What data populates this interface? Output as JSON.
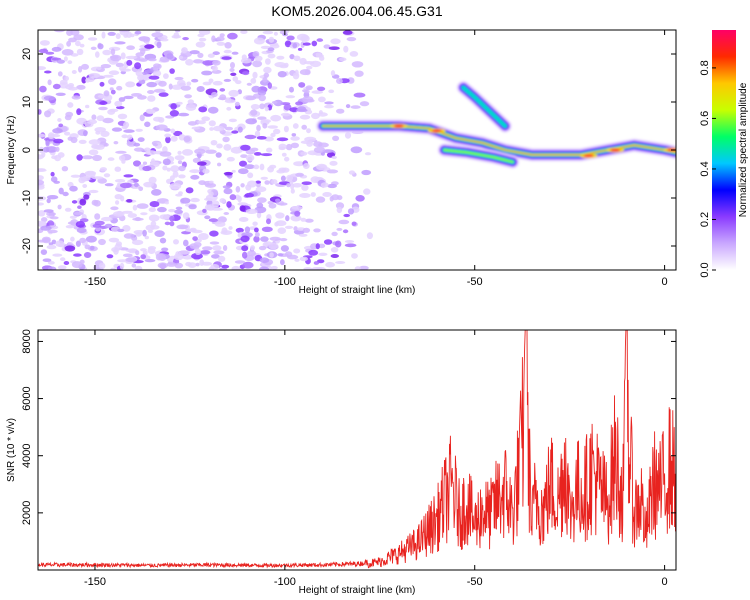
{
  "chart_data": [
    {
      "type": "heatmap",
      "title": "KOM5.2026.004.06.45.G31",
      "xlabel": "Height of straight line (km)",
      "ylabel": "Frequency (Hz)",
      "xlim": [
        -165,
        3
      ],
      "ylim": [
        -25,
        25
      ],
      "xticks": [
        -150,
        -100,
        -50,
        0
      ],
      "yticks": [
        -20,
        -10,
        0,
        10,
        20
      ],
      "noise_region": {
        "x": [
          -165,
          -75
        ],
        "y": [
          -25,
          25
        ],
        "level": "low (purple/violet speckle)"
      },
      "ridges": [
        {
          "name": "main",
          "points": [
            [
              -90,
              5
            ],
            [
              -80,
              5
            ],
            [
              -70,
              5
            ],
            [
              -62,
              4.5
            ],
            [
              -55,
              2.5
            ],
            [
              -48,
              1.5
            ],
            [
              -42,
              0
            ],
            [
              -35,
              -1
            ],
            [
              -28,
              -1
            ],
            [
              -22,
              -1
            ],
            [
              -15,
              0
            ],
            [
              -8,
              1
            ],
            [
              0,
              0
            ],
            [
              3,
              -0.5
            ]
          ],
          "peak": 1.0
        },
        {
          "name": "lower-branch",
          "points": [
            [
              -58,
              0
            ],
            [
              -52,
              -0.5
            ],
            [
              -45,
              -1.5
            ],
            [
              -40,
              -2.5
            ]
          ],
          "peak": 0.6
        },
        {
          "name": "upper-branch",
          "points": [
            [
              -53,
              13
            ],
            [
              -50,
              11
            ],
            [
              -46,
              8
            ],
            [
              -42,
              5
            ]
          ],
          "peak": 0.5
        }
      ],
      "colorbar": {
        "label": "Normalized spectral amplitude",
        "range": [
          0,
          0.95
        ],
        "ticks": [
          0.0,
          0.2,
          0.4,
          0.6,
          0.8
        ],
        "tick_labels": [
          "0.0",
          "0.2",
          "0.4",
          "0.6",
          "0.8"
        ],
        "colors": [
          "#ffffff",
          "#c9a7ff",
          "#8a3bff",
          "#0000ff",
          "#00c8ff",
          "#00ff66",
          "#c8ff00",
          "#ffc800",
          "#ff2a00",
          "#ff0066"
        ]
      }
    },
    {
      "type": "line",
      "xlabel": "Height of straight line (km)",
      "ylabel": "SNR (10 * v/v)",
      "xlim": [
        -165,
        3
      ],
      "ylim": [
        0,
        8400
      ],
      "xticks": [
        -150,
        -100,
        -50,
        0
      ],
      "yticks": [
        2000,
        4000,
        6000,
        8000
      ],
      "series": [
        {
          "name": "SNR",
          "color": "#e8231f",
          "x": [
            -165,
            -150,
            -135,
            -120,
            -105,
            -90,
            -80,
            -75,
            -70,
            -65,
            -60,
            -58,
            -56,
            -54,
            -52,
            -50,
            -48,
            -46,
            -44,
            -42,
            -40,
            -38,
            -36.5,
            -35,
            -34,
            -32,
            -30,
            -28,
            -26,
            -25,
            -23,
            -21,
            -19,
            -17,
            -15,
            -13,
            -11,
            -10,
            -9,
            -8,
            -6,
            -5,
            -3,
            -1,
            1,
            3
          ],
          "values": [
            200,
            200,
            180,
            200,
            180,
            200,
            250,
            400,
            800,
            1300,
            2400,
            3300,
            4100,
            2600,
            3300,
            2200,
            2900,
            2600,
            3400,
            3800,
            2700,
            5200,
            8400,
            2200,
            3600,
            2800,
            4200,
            3300,
            5400,
            2700,
            3900,
            3800,
            4800,
            3900,
            3200,
            5500,
            3400,
            8400,
            5000,
            2800,
            3400,
            1600,
            4200,
            3800,
            5000,
            4600
          ]
        }
      ]
    }
  ]
}
